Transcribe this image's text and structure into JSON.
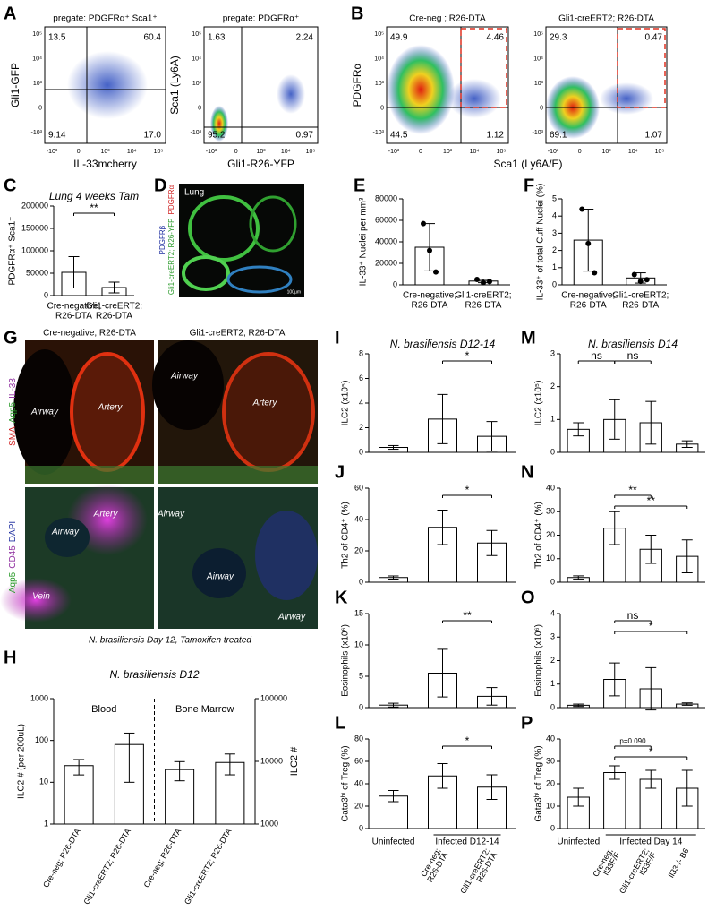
{
  "panels": [
    "A",
    "B",
    "C",
    "D",
    "E",
    "F",
    "G",
    "H",
    "I",
    "J",
    "K",
    "L",
    "M",
    "N",
    "O",
    "P"
  ],
  "flow_ticks": {
    "y": [
      "10⁵",
      "10⁴",
      "10³",
      "0",
      "-10³"
    ],
    "x": [
      "-10³",
      "0",
      "10³",
      "10⁴",
      "10⁵"
    ]
  },
  "flow": [
    {
      "title": "pregate: PDGFRα⁺ Sca1⁺",
      "ylabel": "Gli1-GFP",
      "xlabel": "IL-33mcherry",
      "quadrants": [
        "13.5",
        "60.4",
        "9.14",
        "17.0"
      ]
    },
    {
      "title": "pregate: PDGFRα⁺",
      "ylabel": "Sca1 (Ly6A)",
      "xlabel": "Gli1-R26-YFP",
      "quadrants": [
        "1.63",
        "2.24",
        "95.2",
        "0.97"
      ]
    },
    {
      "title": "Cre-neg ; R26-DTA",
      "ylabel": "PDGFRα",
      "xlabel": "Sca1 (Ly6A/E)",
      "quadrants": [
        "49.9",
        "4.46",
        "44.5",
        "1.12"
      ]
    },
    {
      "title": "Gli1-creERT2; R26-DTA",
      "quadrants": [
        "29.3",
        "0.47",
        "69.1",
        "1.07"
      ]
    }
  ],
  "image_D": {
    "label": "Lung",
    "side_green": "Gli1-creERT2; R26-YFP",
    "side_blue": "PDGFRβ",
    "side_red": "PDGFRα",
    "scale": "100µm"
  },
  "image_G": {
    "columns": [
      "Cre-negative; R26-DTA",
      "Gli1-creERT2; R26-DTA"
    ],
    "stain_top": [
      "SMA",
      "Aqp5",
      "IL-33"
    ],
    "stain_bottom": [
      "Aqp5",
      "CD45",
      "DAPI"
    ],
    "tiles": [
      [
        "Airway",
        "Artery"
      ],
      [
        "Airway",
        "Artery"
      ],
      [
        "Airway",
        "Artery",
        "Vein"
      ],
      [
        "Airway",
        "Airway",
        "Airway"
      ]
    ],
    "caption": "N. brasiliensis Day 12, Tamoxifen treated"
  },
  "chart_data": [
    {
      "type": "bar",
      "title": "Lung 4 weeks Tam",
      "ylabel": "PDGFRα⁺ Sca1⁺",
      "categories": [
        [
          "Cre-negative;",
          "R26-DTA"
        ],
        [
          "Gli1-creERT2;",
          "R26-DTA"
        ]
      ],
      "values": [
        52000,
        18000
      ],
      "errors": [
        35000,
        12000
      ],
      "ylim": [
        0,
        200000
      ],
      "yticks": [
        0,
        50000,
        100000,
        150000,
        200000
      ],
      "annotations": [
        {
          "text": "**",
          "from": 0,
          "to": 1
        }
      ]
    },
    {
      "type": "bar",
      "ylabel": "IL-33⁺ Nuclei per mm³",
      "categories": [
        [
          "Cre-negative;",
          "R26-DTA"
        ],
        [
          "Gli1-creERT2;",
          "R26-DTA"
        ]
      ],
      "values": [
        35000,
        3500
      ],
      "errors": [
        22000,
        1500
      ],
      "points": [
        [
          57000,
          32000,
          12000
        ],
        [
          5000,
          2000,
          3000
        ]
      ],
      "ylim": [
        0,
        80000
      ],
      "yticks": [
        0,
        20000,
        40000,
        60000,
        80000
      ]
    },
    {
      "type": "bar",
      "ylabel": "IL-33⁺ of total Cuff Nuclei (%)",
      "categories": [
        [
          "Cre-negative;",
          "R26-DTA"
        ],
        [
          "Gli1-creERT2;",
          "R26-DTA"
        ]
      ],
      "values": [
        2.6,
        0.4
      ],
      "errors": [
        1.8,
        0.3
      ],
      "points": [
        [
          4.4,
          2.4,
          0.7
        ],
        [
          0.6,
          0.2,
          0.3
        ]
      ],
      "ylim": [
        0,
        5
      ],
      "yticks": [
        0,
        1,
        2,
        3,
        4,
        5
      ]
    },
    {
      "type": "bar",
      "title": "N. brasiliensis D12",
      "ylabel": "ILC2 # (per 200uL)",
      "y2label": "ILC2 #",
      "log": true,
      "categories": [
        "Cre-neg; R26-DTA",
        "Gli1-creERT2; R26-DTA",
        "Cre-neg; R26-DTA",
        "Gli1-creERT2; R26-DTA"
      ],
      "values": [
        25,
        80,
        7400,
        9600
      ],
      "errors": [
        10,
        70,
        2500,
        3500
      ],
      "axes": [
        "y",
        "y",
        "y2",
        "y2"
      ],
      "sections": [
        {
          "label": "Blood",
          "from": 0,
          "to": 1
        },
        {
          "label": "Bone Marrow",
          "from": 2,
          "to": 3
        }
      ],
      "ylim": [
        1,
        1000
      ],
      "yticks": [
        1,
        10,
        100,
        1000
      ],
      "y2lim": [
        1000,
        100000
      ],
      "y2ticks": [
        1000,
        10000,
        100000
      ]
    },
    {
      "type": "bar",
      "title": "N. brasiliensis D12-14",
      "ylabel": "ILC2 (x10⁵)",
      "values": [
        0.4,
        2.7,
        1.3
      ],
      "errors": [
        0.15,
        2.0,
        1.2
      ],
      "ylim": [
        0,
        8
      ],
      "yticks": [
        0,
        2,
        4,
        6,
        8
      ],
      "annotations": [
        {
          "text": "*",
          "from": 1,
          "to": 2
        }
      ]
    },
    {
      "type": "bar",
      "ylabel": "Th2 of CD4⁺ (%)",
      "values": [
        3,
        35,
        25
      ],
      "errors": [
        1,
        11,
        8
      ],
      "ylim": [
        0,
        60
      ],
      "yticks": [
        0,
        20,
        40,
        60
      ],
      "annotations": [
        {
          "text": "*",
          "from": 1,
          "to": 2
        }
      ]
    },
    {
      "type": "bar",
      "ylabel": "Eosinophils (x10⁶)",
      "values": [
        0.4,
        5.5,
        1.8
      ],
      "errors": [
        0.3,
        3.8,
        1.4
      ],
      "ylim": [
        0,
        15
      ],
      "yticks": [
        0,
        5,
        10,
        15
      ],
      "annotations": [
        {
          "text": "**",
          "from": 1,
          "to": 2
        }
      ]
    },
    {
      "type": "bar",
      "ylabel": "Gata3ʰⁱ of Treg (%)",
      "values": [
        29,
        47,
        37
      ],
      "errors": [
        5,
        11,
        11
      ],
      "ylim": [
        0,
        80
      ],
      "yticks": [
        0,
        20,
        40,
        60,
        80
      ],
      "annotations": [
        {
          "text": "*",
          "from": 1,
          "to": 2
        }
      ],
      "categories": [
        null,
        [
          "Cre-neg;",
          "R26-DTA"
        ],
        [
          "Gli1-creERT2;",
          "R26-DTA"
        ]
      ],
      "groups": [
        {
          "label": "Uninfected",
          "from": 0,
          "to": 0
        },
        {
          "label": "Infected D12-14",
          "from": 1,
          "to": 2
        }
      ]
    },
    {
      "type": "bar",
      "title": "N. brasiliensis D14",
      "ylabel": "ILC2 (x10⁵)",
      "values": [
        0.7,
        1.0,
        0.9,
        0.25
      ],
      "errors": [
        0.2,
        0.6,
        0.65,
        0.1
      ],
      "ylim": [
        0,
        3
      ],
      "yticks": [
        0,
        1,
        2,
        3
      ],
      "annotations": [
        {
          "text": "ns",
          "from": 0,
          "to": 1
        },
        {
          "text": "ns",
          "from": 1,
          "to": 2
        }
      ]
    },
    {
      "type": "bar",
      "ylabel": "Th2 of CD4⁺ (%)",
      "values": [
        2,
        23,
        14,
        11
      ],
      "errors": [
        0.7,
        7,
        6,
        7
      ],
      "ylim": [
        0,
        40
      ],
      "yticks": [
        0,
        10,
        20,
        30,
        40
      ],
      "annotations": [
        {
          "text": "**",
          "from": 1,
          "to": 2
        },
        {
          "text": "**",
          "from": 1,
          "to": 3
        }
      ]
    },
    {
      "type": "bar",
      "ylabel": "Eosinophils (x10⁶)",
      "values": [
        0.1,
        1.2,
        0.8,
        0.15
      ],
      "errors": [
        0.05,
        0.7,
        0.9,
        0.05
      ],
      "ylim": [
        0,
        4
      ],
      "yticks": [
        0,
        1,
        2,
        3,
        4
      ],
      "annotations": [
        {
          "text": "ns",
          "from": 1,
          "to": 2
        },
        {
          "text": "*",
          "from": 1,
          "to": 3
        }
      ]
    },
    {
      "type": "bar",
      "ylabel": "Gata3ʰⁱ of Treg (%)",
      "values": [
        14,
        25,
        22,
        18
      ],
      "errors": [
        4,
        3,
        4,
        8
      ],
      "ylim": [
        0,
        40
      ],
      "yticks": [
        0,
        10,
        20,
        30,
        40
      ],
      "annotations": [
        {
          "text": "p=0.090",
          "from": 1,
          "to": 2
        },
        {
          "text": "*",
          "from": 1,
          "to": 3
        }
      ],
      "categories": [
        null,
        [
          "Cre-neg;",
          "Il33F/F"
        ],
        [
          "Gli1-creERT2;",
          "Il33F/F"
        ],
        [
          "Il33-/- B6"
        ]
      ],
      "groups": [
        {
          "label": "Uninfected",
          "from": 0,
          "to": 0
        },
        {
          "label": "Infected Day 14",
          "from": 1,
          "to": 3
        }
      ]
    }
  ]
}
